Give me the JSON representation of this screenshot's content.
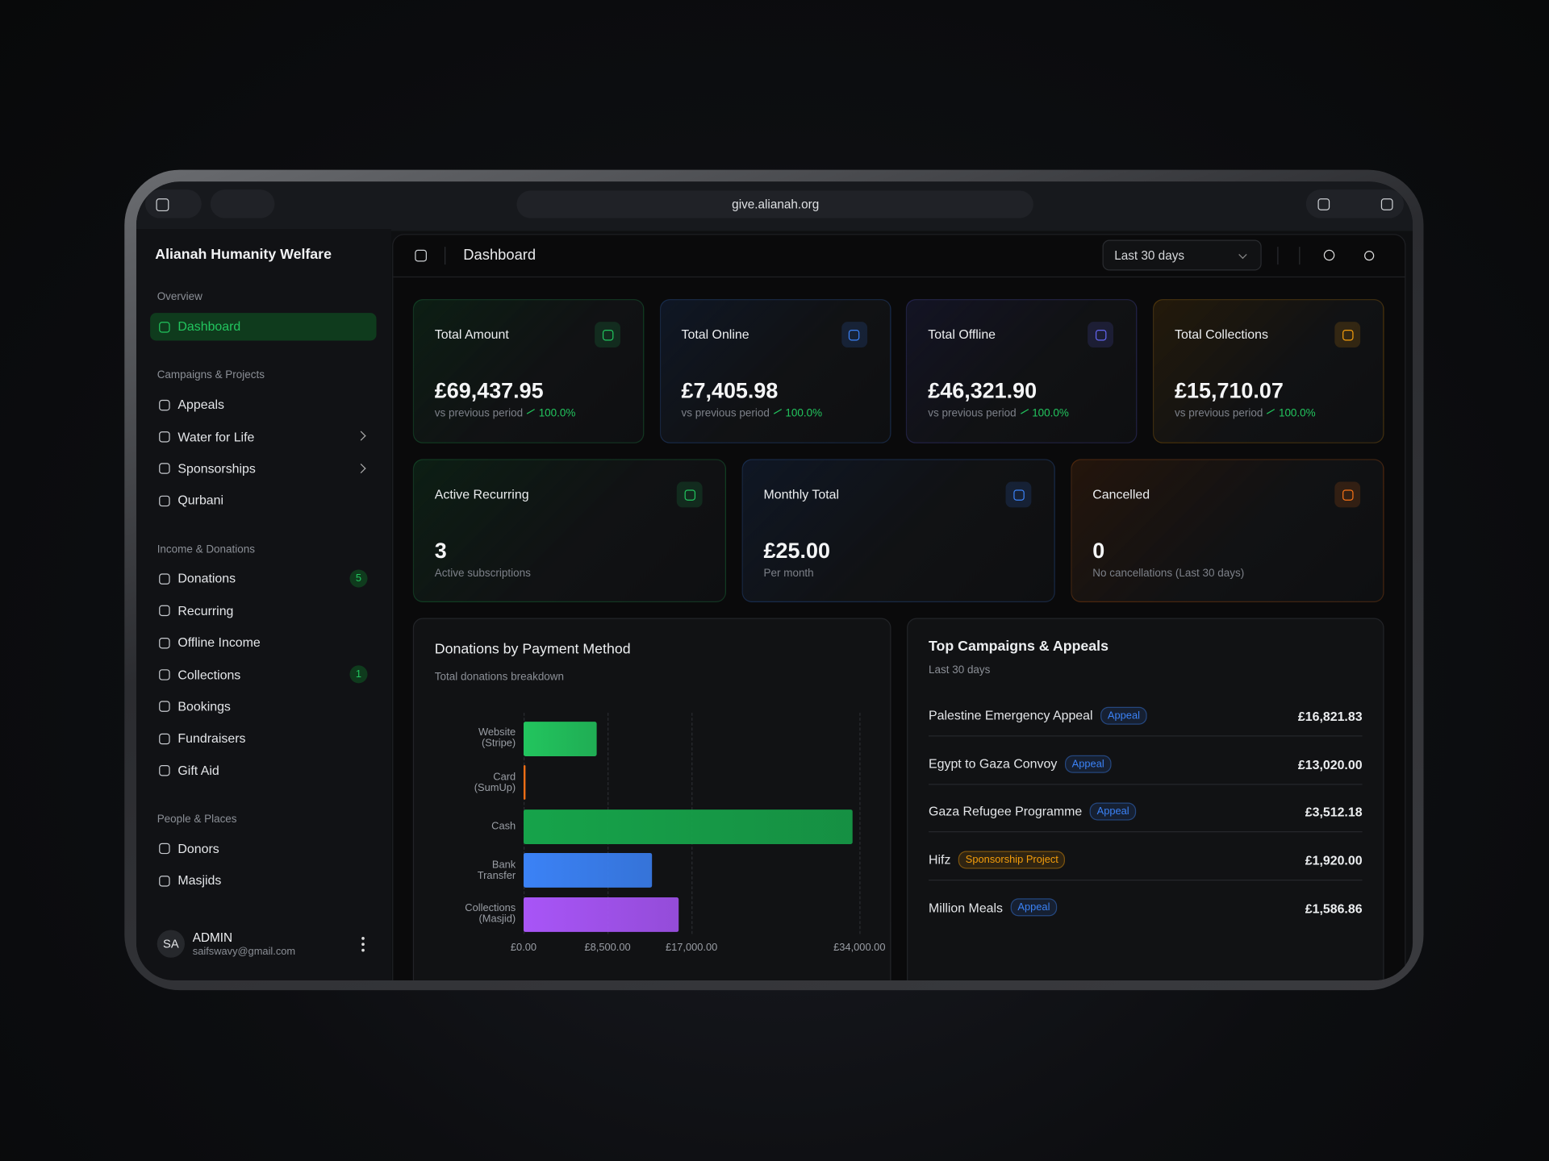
{
  "browser": {
    "url": "give.alianah.org"
  },
  "sidebar": {
    "org": "Alianah Humanity Welfare",
    "sections": [
      {
        "title": "Overview",
        "items": [
          {
            "label": "Dashboard",
            "active": true
          }
        ]
      },
      {
        "title": "Campaigns & Projects",
        "items": [
          {
            "label": "Appeals"
          },
          {
            "label": "Water for Life",
            "submenu": true
          },
          {
            "label": "Sponsorships",
            "submenu": true
          },
          {
            "label": "Qurbani"
          }
        ]
      },
      {
        "title": "Income & Donations",
        "items": [
          {
            "label": "Donations",
            "badge": 5
          },
          {
            "label": "Recurring"
          },
          {
            "label": "Offline Income"
          },
          {
            "label": "Collections",
            "badge": 1
          },
          {
            "label": "Bookings"
          },
          {
            "label": "Fundraisers"
          },
          {
            "label": "Gift Aid"
          }
        ]
      },
      {
        "title": "People & Places",
        "items": [
          {
            "label": "Donors"
          },
          {
            "label": "Masjids"
          }
        ]
      }
    ],
    "user": {
      "initials": "SA",
      "name": "ADMIN",
      "email": "saifswavy@gmail.com"
    }
  },
  "header": {
    "title": "Dashboard",
    "period": "Last 30 days"
  },
  "stats": [
    {
      "title": "Total Amount",
      "value": "£69,437.95",
      "note": "vs previous period",
      "change": "100.0%",
      "accent": "#22c55e"
    },
    {
      "title": "Total Online",
      "value": "£7,405.98",
      "note": "vs previous period",
      "change": "100.0%",
      "accent": "#3b82f6"
    },
    {
      "title": "Total Offline",
      "value": "£46,321.90",
      "note": "vs previous period",
      "change": "100.0%",
      "accent": "#6366f1"
    },
    {
      "title": "Total Collections",
      "value": "£15,710.07",
      "note": "vs previous period",
      "change": "100.0%",
      "accent": "#f59e0b"
    }
  ],
  "recurring": [
    {
      "title": "Active Recurring",
      "value": "3",
      "note": "Active subscriptions",
      "accent": "#22c55e"
    },
    {
      "title": "Monthly Total",
      "value": "£25.00",
      "note": "Per month",
      "accent": "#3b82f6"
    },
    {
      "title": "Cancelled",
      "value": "0",
      "note": "No cancellations (Last 30 days)",
      "accent": "#f97316"
    }
  ],
  "chart_data": {
    "type": "hbar",
    "title": "Donations by Payment Method",
    "subtitle": "Total donations breakdown",
    "categories": [
      "Website\n(Stripe)",
      "Card\n(SumUp)",
      "Cash",
      "Bank\nTransfer",
      "Collections\n(Masjid)"
    ],
    "values": [
      7400,
      100,
      33300,
      13000,
      15700
    ],
    "colors": [
      "#22c55e",
      "#f97316",
      "#16a34a",
      "#3b82f6",
      "#a855f7"
    ],
    "xlim": [
      0,
      34000
    ],
    "xticks": [
      {
        "value": 0,
        "label": "£0.00"
      },
      {
        "value": 8500,
        "label": "£8,500.00"
      },
      {
        "value": 17000,
        "label": "£17,000.00"
      },
      {
        "value": 34000,
        "label": "£34,000.00"
      }
    ],
    "grid": true
  },
  "campaigns": {
    "title": "Top Campaigns & Appeals",
    "subtitle": "Last 30 days",
    "rows": [
      {
        "name": "Palestine Emergency Appeal",
        "tag": "Appeal",
        "tag_color": "#3b82f6",
        "amount": "£16,821.83"
      },
      {
        "name": "Egypt to Gaza Convoy",
        "tag": "Appeal",
        "tag_color": "#3b82f6",
        "amount": "£13,020.00"
      },
      {
        "name": "Gaza Refugee Programme",
        "tag": "Appeal",
        "tag_color": "#3b82f6",
        "amount": "£3,512.18"
      },
      {
        "name": "Hifz",
        "tag": "Sponsorship Project",
        "tag_color": "#f59e0b",
        "amount": "£1,920.00"
      },
      {
        "name": "Million Meals",
        "tag": "Appeal",
        "tag_color": "#3b82f6",
        "amount": "£1,586.86"
      }
    ]
  }
}
